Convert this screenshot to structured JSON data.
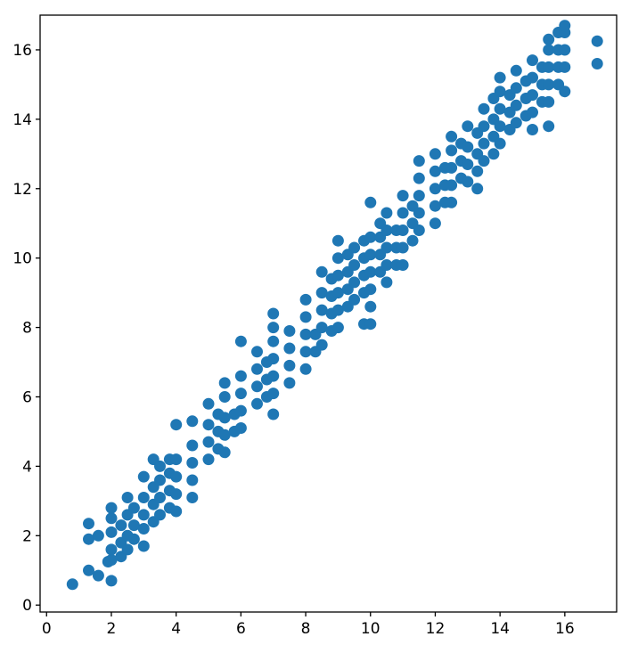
{
  "chart_data": {
    "type": "scatter",
    "title": "",
    "xlabel": "",
    "ylabel": "",
    "xlim": [
      -0.2,
      17.6
    ],
    "ylim": [
      -0.2,
      17.0
    ],
    "xticks": [
      0,
      2,
      4,
      6,
      8,
      10,
      12,
      14,
      16
    ],
    "yticks": [
      0,
      2,
      4,
      6,
      8,
      10,
      12,
      14,
      16
    ],
    "xtick_labels": [
      "0",
      "2",
      "4",
      "6",
      "8",
      "10",
      "12",
      "14",
      "16"
    ],
    "ytick_labels": [
      "0",
      "2",
      "4",
      "6",
      "8",
      "10",
      "12",
      "14",
      "16"
    ],
    "grid": false,
    "marker_color": "#1f77b4",
    "series": [
      {
        "points": [
          [
            0.8,
            0.6
          ],
          [
            1.3,
            1.0
          ],
          [
            1.3,
            1.9
          ],
          [
            1.3,
            2.35
          ],
          [
            1.6,
            0.85
          ],
          [
            1.6,
            2.0
          ],
          [
            1.9,
            1.25
          ],
          [
            2.0,
            0.7
          ],
          [
            2.0,
            1.3
          ],
          [
            2.0,
            1.6
          ],
          [
            2.0,
            2.1
          ],
          [
            2.0,
            2.5
          ],
          [
            2.0,
            2.8
          ],
          [
            2.3,
            1.4
          ],
          [
            2.3,
            1.8
          ],
          [
            2.3,
            2.3
          ],
          [
            2.5,
            1.6
          ],
          [
            2.5,
            2.0
          ],
          [
            2.5,
            2.6
          ],
          [
            2.5,
            3.1
          ],
          [
            2.7,
            1.9
          ],
          [
            2.7,
            2.3
          ],
          [
            2.7,
            2.8
          ],
          [
            3.0,
            1.7
          ],
          [
            3.0,
            2.2
          ],
          [
            3.0,
            2.6
          ],
          [
            3.0,
            3.1
          ],
          [
            3.0,
            3.7
          ],
          [
            3.3,
            2.4
          ],
          [
            3.3,
            2.9
          ],
          [
            3.3,
            3.4
          ],
          [
            3.3,
            4.2
          ],
          [
            3.5,
            2.6
          ],
          [
            3.5,
            3.1
          ],
          [
            3.5,
            3.6
          ],
          [
            3.5,
            4.0
          ],
          [
            3.8,
            2.8
          ],
          [
            3.8,
            3.3
          ],
          [
            3.8,
            3.8
          ],
          [
            3.8,
            4.2
          ],
          [
            4.0,
            2.7
          ],
          [
            4.0,
            3.2
          ],
          [
            4.0,
            3.7
          ],
          [
            4.0,
            4.2
          ],
          [
            4.0,
            5.2
          ],
          [
            4.5,
            3.1
          ],
          [
            4.5,
            3.6
          ],
          [
            4.5,
            4.1
          ],
          [
            4.5,
            4.6
          ],
          [
            4.5,
            5.3
          ],
          [
            5.0,
            4.2
          ],
          [
            5.0,
            4.7
          ],
          [
            5.0,
            5.2
          ],
          [
            5.0,
            5.8
          ],
          [
            5.3,
            4.5
          ],
          [
            5.3,
            5.0
          ],
          [
            5.3,
            5.5
          ],
          [
            5.5,
            4.4
          ],
          [
            5.5,
            4.9
          ],
          [
            5.5,
            5.4
          ],
          [
            5.5,
            6.0
          ],
          [
            5.5,
            6.4
          ],
          [
            5.8,
            5.0
          ],
          [
            5.8,
            5.5
          ],
          [
            6.0,
            5.1
          ],
          [
            6.0,
            5.6
          ],
          [
            6.0,
            6.1
          ],
          [
            6.0,
            6.6
          ],
          [
            6.0,
            7.6
          ],
          [
            6.5,
            5.8
          ],
          [
            6.5,
            6.3
          ],
          [
            6.5,
            6.8
          ],
          [
            6.5,
            7.3
          ],
          [
            6.8,
            6.0
          ],
          [
            6.8,
            6.5
          ],
          [
            6.8,
            7.0
          ],
          [
            7.0,
            5.5
          ],
          [
            7.0,
            6.1
          ],
          [
            7.0,
            6.6
          ],
          [
            7.0,
            7.1
          ],
          [
            7.0,
            7.6
          ],
          [
            7.0,
            8.0
          ],
          [
            7.0,
            8.4
          ],
          [
            7.5,
            6.4
          ],
          [
            7.5,
            6.9
          ],
          [
            7.5,
            7.4
          ],
          [
            7.5,
            7.9
          ],
          [
            8.0,
            6.8
          ],
          [
            8.0,
            7.3
          ],
          [
            8.0,
            7.8
          ],
          [
            8.0,
            8.3
          ],
          [
            8.0,
            8.8
          ],
          [
            8.3,
            7.3
          ],
          [
            8.3,
            7.8
          ],
          [
            8.5,
            7.5
          ],
          [
            8.5,
            8.0
          ],
          [
            8.5,
            8.5
          ],
          [
            8.5,
            9.0
          ],
          [
            8.5,
            9.6
          ],
          [
            8.8,
            7.9
          ],
          [
            8.8,
            8.4
          ],
          [
            8.8,
            8.9
          ],
          [
            8.8,
            9.4
          ],
          [
            9.0,
            8.0
          ],
          [
            9.0,
            8.5
          ],
          [
            9.0,
            9.0
          ],
          [
            9.0,
            9.5
          ],
          [
            9.0,
            10.0
          ],
          [
            9.0,
            10.5
          ],
          [
            9.3,
            8.6
          ],
          [
            9.3,
            9.1
          ],
          [
            9.3,
            9.6
          ],
          [
            9.3,
            10.1
          ],
          [
            9.5,
            8.8
          ],
          [
            9.5,
            9.3
          ],
          [
            9.5,
            9.8
          ],
          [
            9.5,
            10.3
          ],
          [
            9.8,
            8.1
          ],
          [
            9.8,
            9.0
          ],
          [
            9.8,
            9.5
          ],
          [
            9.8,
            10.0
          ],
          [
            9.8,
            10.5
          ],
          [
            10.0,
            8.1
          ],
          [
            10.0,
            8.6
          ],
          [
            10.0,
            9.1
          ],
          [
            10.0,
            9.6
          ],
          [
            10.0,
            10.1
          ],
          [
            10.0,
            10.6
          ],
          [
            10.0,
            11.6
          ],
          [
            10.3,
            9.6
          ],
          [
            10.3,
            10.1
          ],
          [
            10.3,
            10.6
          ],
          [
            10.3,
            11.0
          ],
          [
            10.5,
            9.3
          ],
          [
            10.5,
            9.8
          ],
          [
            10.5,
            10.3
          ],
          [
            10.5,
            10.8
          ],
          [
            10.5,
            11.3
          ],
          [
            10.8,
            9.8
          ],
          [
            10.8,
            10.3
          ],
          [
            10.8,
            10.8
          ],
          [
            11.0,
            9.8
          ],
          [
            11.0,
            10.3
          ],
          [
            11.0,
            10.8
          ],
          [
            11.0,
            11.3
          ],
          [
            11.0,
            11.8
          ],
          [
            11.3,
            10.5
          ],
          [
            11.3,
            11.0
          ],
          [
            11.3,
            11.5
          ],
          [
            11.5,
            10.8
          ],
          [
            11.5,
            11.3
          ],
          [
            11.5,
            11.8
          ],
          [
            11.5,
            12.3
          ],
          [
            11.5,
            12.8
          ],
          [
            12.0,
            11.0
          ],
          [
            12.0,
            11.5
          ],
          [
            12.0,
            12.0
          ],
          [
            12.0,
            12.5
          ],
          [
            12.0,
            13.0
          ],
          [
            12.3,
            11.6
          ],
          [
            12.3,
            12.1
          ],
          [
            12.3,
            12.6
          ],
          [
            12.5,
            11.6
          ],
          [
            12.5,
            12.1
          ],
          [
            12.5,
            12.6
          ],
          [
            12.5,
            13.1
          ],
          [
            12.5,
            13.5
          ],
          [
            12.8,
            12.3
          ],
          [
            12.8,
            12.8
          ],
          [
            12.8,
            13.3
          ],
          [
            13.0,
            12.2
          ],
          [
            13.0,
            12.7
          ],
          [
            13.0,
            13.2
          ],
          [
            13.0,
            13.8
          ],
          [
            13.3,
            12.0
          ],
          [
            13.3,
            12.5
          ],
          [
            13.3,
            13.0
          ],
          [
            13.3,
            13.6
          ],
          [
            13.5,
            12.8
          ],
          [
            13.5,
            13.3
          ],
          [
            13.5,
            13.8
          ],
          [
            13.5,
            14.3
          ],
          [
            13.8,
            13.0
          ],
          [
            13.8,
            13.5
          ],
          [
            13.8,
            14.0
          ],
          [
            13.8,
            14.6
          ],
          [
            14.0,
            13.3
          ],
          [
            14.0,
            13.8
          ],
          [
            14.0,
            14.3
          ],
          [
            14.0,
            14.8
          ],
          [
            14.0,
            15.2
          ],
          [
            14.3,
            13.7
          ],
          [
            14.3,
            14.2
          ],
          [
            14.3,
            14.7
          ],
          [
            14.5,
            13.9
          ],
          [
            14.5,
            14.4
          ],
          [
            14.5,
            14.9
          ],
          [
            14.5,
            15.4
          ],
          [
            14.8,
            14.1
          ],
          [
            14.8,
            14.6
          ],
          [
            14.8,
            15.1
          ],
          [
            15.0,
            13.7
          ],
          [
            15.0,
            14.2
          ],
          [
            15.0,
            14.7
          ],
          [
            15.0,
            15.2
          ],
          [
            15.0,
            15.7
          ],
          [
            15.3,
            14.5
          ],
          [
            15.3,
            15.0
          ],
          [
            15.3,
            15.5
          ],
          [
            15.5,
            13.8
          ],
          [
            15.5,
            14.5
          ],
          [
            15.5,
            15.0
          ],
          [
            15.5,
            15.5
          ],
          [
            15.5,
            16.0
          ],
          [
            15.5,
            16.3
          ],
          [
            15.8,
            15.0
          ],
          [
            15.8,
            15.5
          ],
          [
            15.8,
            16.0
          ],
          [
            15.8,
            16.5
          ],
          [
            16.0,
            14.8
          ],
          [
            16.0,
            15.5
          ],
          [
            16.0,
            16.0
          ],
          [
            16.0,
            16.5
          ],
          [
            16.0,
            16.7
          ],
          [
            17.0,
            15.6
          ],
          [
            17.0,
            16.25
          ]
        ]
      }
    ]
  }
}
